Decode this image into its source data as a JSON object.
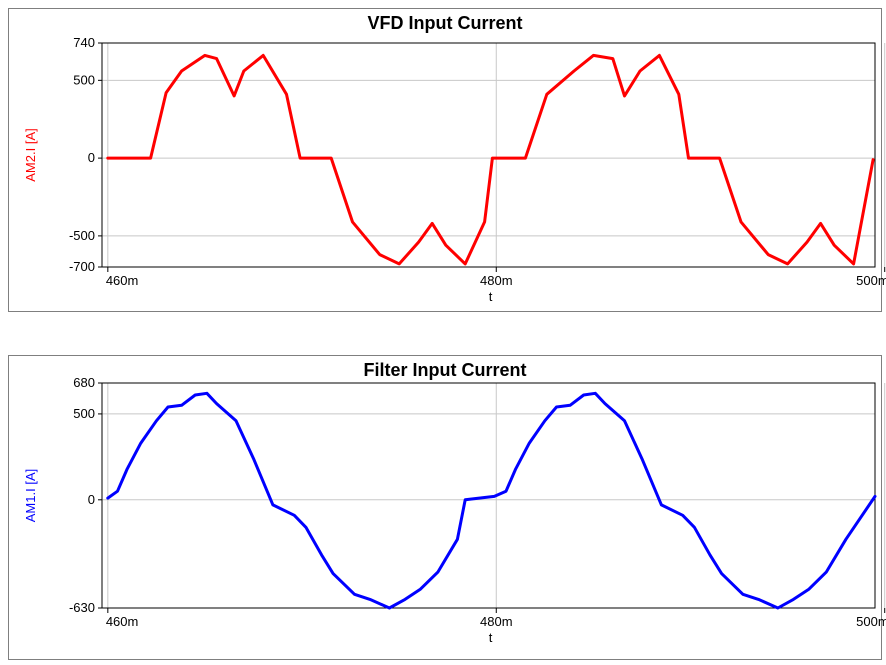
{
  "chart_data": [
    {
      "type": "line",
      "title": "VFD Input Current",
      "xlabel": "t",
      "ylabel": "AM2.I [A]",
      "x_ticks": [
        "460m",
        "480m",
        "500m"
      ],
      "y_ticks": [
        "740",
        "500",
        "0",
        "-500",
        "-700"
      ],
      "xlim": [
        0.4597,
        0.4995
      ],
      "ylim": [
        -700,
        740
      ],
      "grid": true,
      "color": "#ff0000",
      "series": [
        {
          "x": [
            0.46,
            0.4622,
            0.463,
            0.4638,
            0.465,
            0.4656,
            0.4665,
            0.467,
            0.468,
            0.4692,
            0.4699,
            0.4715,
            0.4726,
            0.474,
            0.475,
            0.476,
            0.4767,
            0.4774,
            0.4784,
            0.4794,
            0.4798,
            0.4815,
            0.4826,
            0.484,
            0.485,
            0.486,
            0.4866,
            0.4874,
            0.4884,
            0.4894,
            0.4899,
            0.4915,
            0.4926,
            0.494,
            0.495,
            0.496,
            0.4967,
            0.4974,
            0.4984,
            0.4994
          ],
          "y": [
            0,
            0,
            420,
            560,
            660,
            640,
            400,
            560,
            660,
            410,
            0,
            0,
            -410,
            -620,
            -680,
            -540,
            -420,
            -560,
            -680,
            -410,
            0,
            0,
            410,
            560,
            660,
            640,
            400,
            560,
            660,
            410,
            0,
            0,
            -410,
            -620,
            -680,
            -540,
            -420,
            -560,
            -680,
            -10
          ]
        }
      ]
    },
    {
      "type": "line",
      "title": "Filter Input Current",
      "xlabel": "t",
      "ylabel": "AM1.I [A]",
      "x_ticks": [
        "460m",
        "480m",
        "500m"
      ],
      "y_ticks": [
        "680",
        "500",
        "0",
        "-630"
      ],
      "xlim": [
        0.4597,
        0.4995
      ],
      "ylim": [
        -630,
        680
      ],
      "grid": true,
      "color": "#0000ff",
      "series": [
        {
          "x": [
            0.46,
            0.4605,
            0.461,
            0.4617,
            0.4625,
            0.4631,
            0.4638,
            0.4645,
            0.4651,
            0.4656,
            0.4666,
            0.4675,
            0.4685,
            0.4696,
            0.4702,
            0.471,
            0.4716,
            0.4727,
            0.4735,
            0.4745,
            0.4753,
            0.4761,
            0.477,
            0.478,
            0.4784,
            0.4799,
            0.4805,
            0.481,
            0.4817,
            0.4825,
            0.4831,
            0.4838,
            0.4845,
            0.4851,
            0.4856,
            0.4866,
            0.4875,
            0.4885,
            0.4896,
            0.4902,
            0.491,
            0.4916,
            0.4927,
            0.4935,
            0.4945,
            0.4953,
            0.4961,
            0.497,
            0.498,
            0.4995
          ],
          "y": [
            10,
            50,
            180,
            330,
            460,
            540,
            550,
            610,
            620,
            560,
            460,
            240,
            -30,
            -90,
            -160,
            -320,
            -430,
            -550,
            -580,
            -630,
            -580,
            -520,
            -420,
            -230,
            0,
            20,
            50,
            180,
            330,
            460,
            540,
            550,
            610,
            620,
            560,
            460,
            240,
            -30,
            -90,
            -160,
            -320,
            -430,
            -550,
            -580,
            -630,
            -580,
            -520,
            -420,
            -230,
            20
          ]
        }
      ]
    }
  ]
}
